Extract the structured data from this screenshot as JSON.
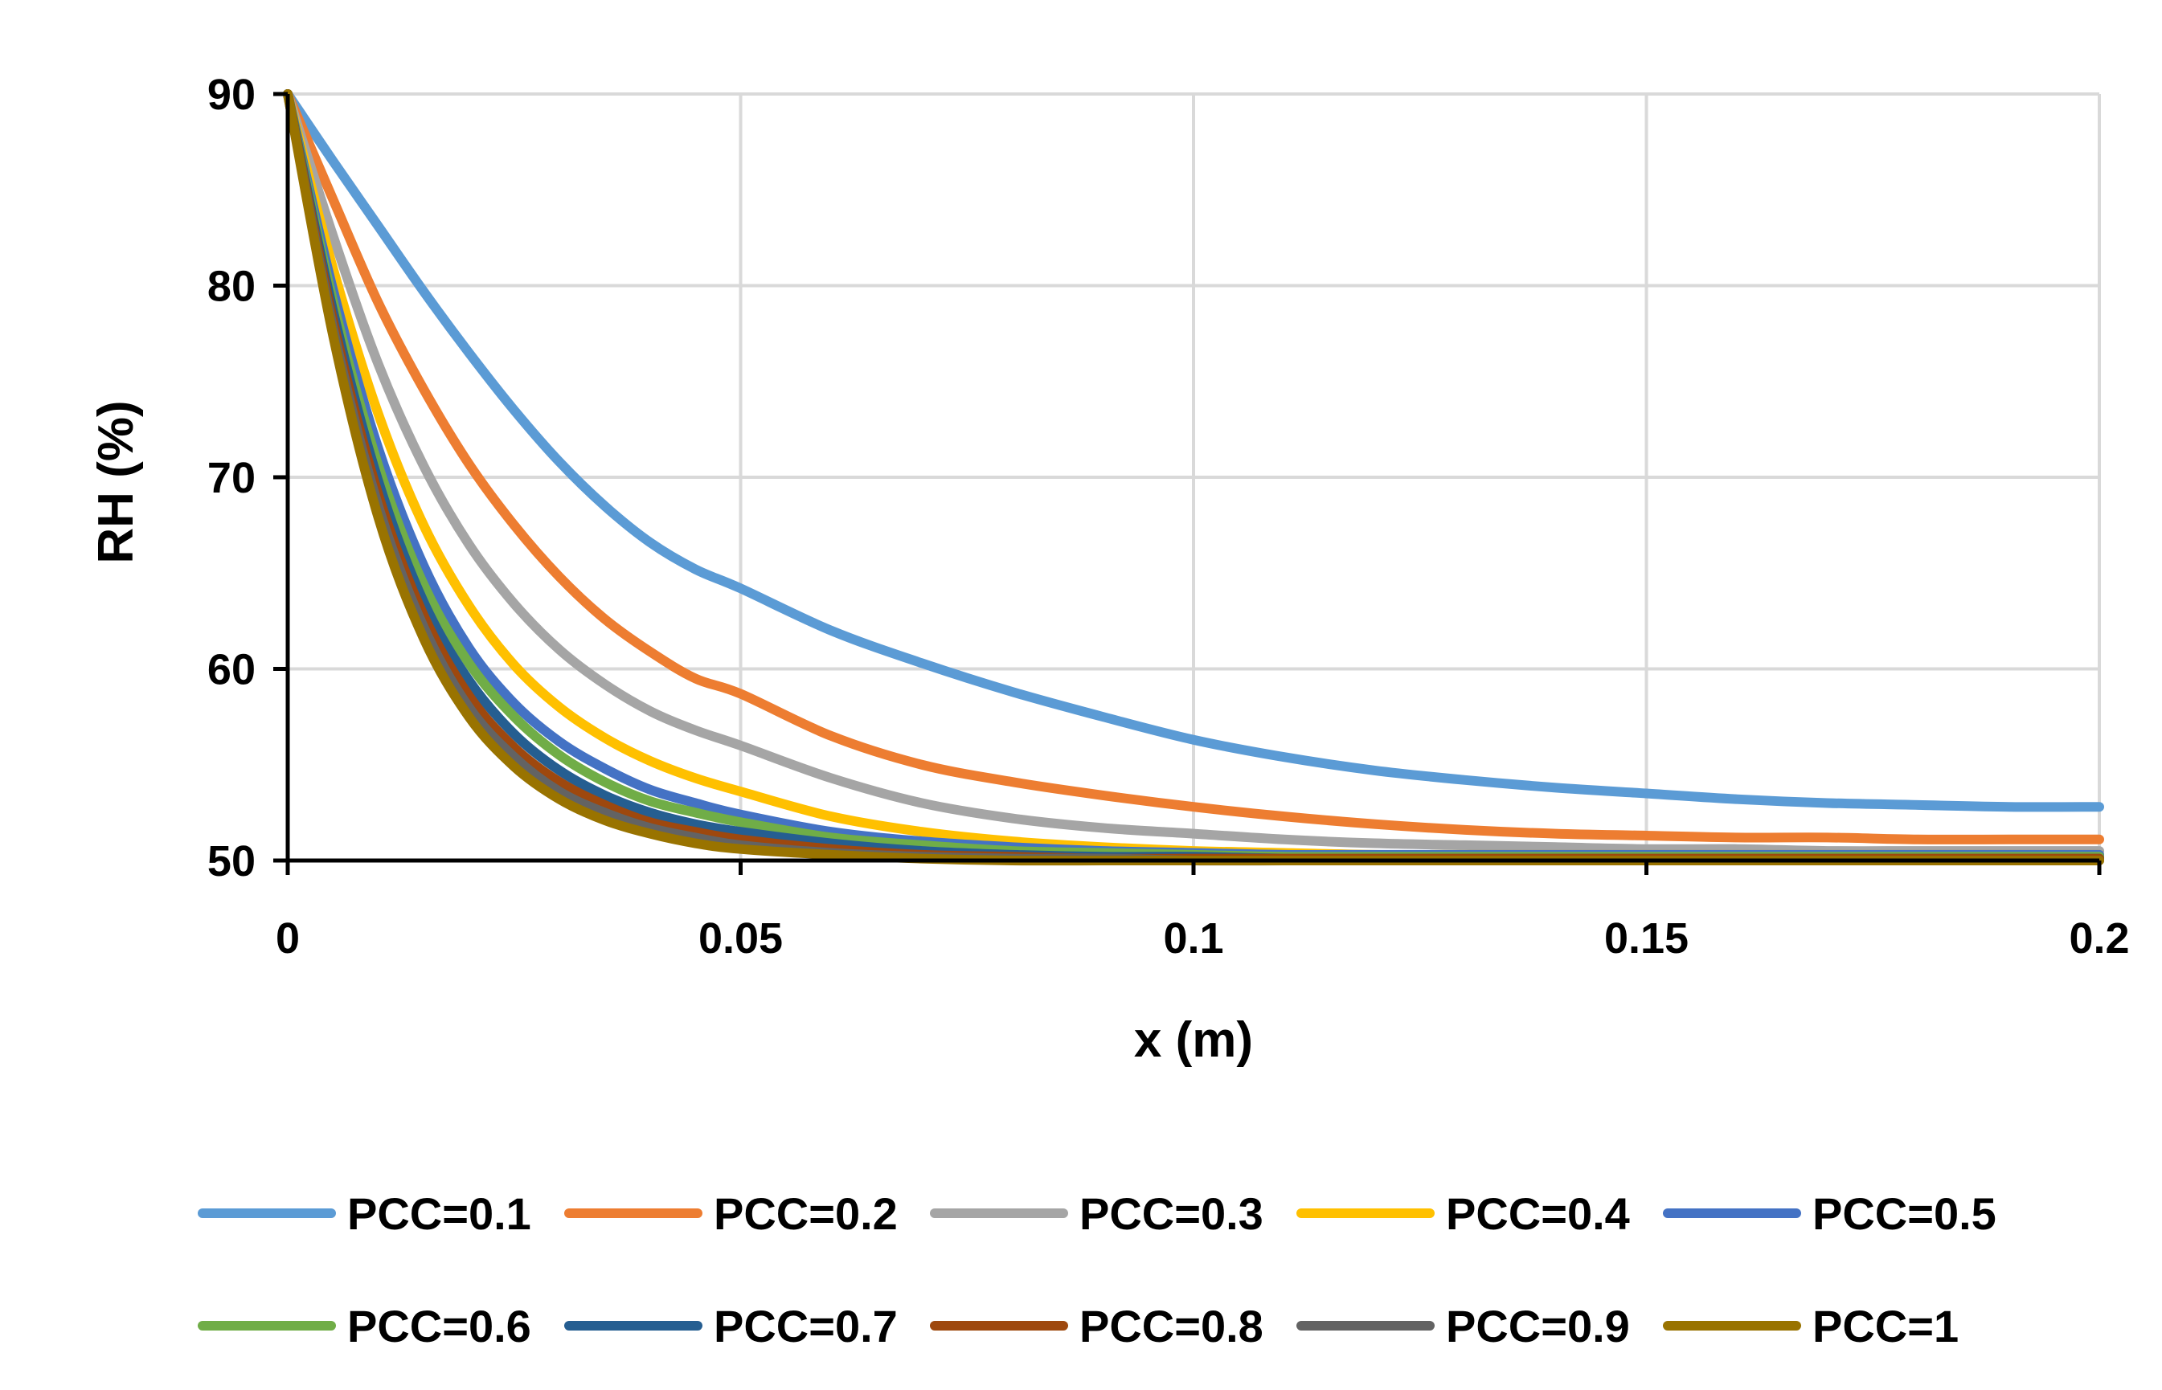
{
  "chart_data": {
    "type": "line",
    "xlabel": "x (m)",
    "ylabel": "RH (%)",
    "xlim": [
      0,
      0.2
    ],
    "ylim": [
      50,
      90
    ],
    "x_ticks": [
      "0",
      "0.05",
      "0.1",
      "0.15",
      "0.2"
    ],
    "y_ticks": [
      "50",
      "60",
      "70",
      "80",
      "90"
    ],
    "grid": true,
    "legend_position": "bottom",
    "x": [
      0,
      0.005,
      0.01,
      0.015,
      0.02,
      0.025,
      0.03,
      0.035,
      0.04,
      0.045,
      0.05,
      0.06,
      0.07,
      0.08,
      0.09,
      0.1,
      0.11,
      0.12,
      0.13,
      0.14,
      0.15,
      0.16,
      0.17,
      0.18,
      0.19,
      0.2
    ],
    "series": [
      {
        "name": "PCC=0.1",
        "color": "#5B9BD5",
        "values": [
          90,
          86.5,
          83.1,
          79.7,
          76.5,
          73.5,
          70.8,
          68.5,
          66.6,
          65.2,
          64.2,
          62.0,
          60.3,
          58.8,
          57.5,
          56.3,
          55.4,
          54.7,
          54.2,
          53.8,
          53.5,
          53.2,
          53.0,
          52.9,
          52.8,
          52.8
        ]
      },
      {
        "name": "PCC=0.2",
        "color": "#ED7D31",
        "values": [
          90,
          84.5,
          79.1,
          74.6,
          70.7,
          67.5,
          64.8,
          62.6,
          60.9,
          59.5,
          58.7,
          56.5,
          55.0,
          54.1,
          53.4,
          52.8,
          52.3,
          51.9,
          51.6,
          51.4,
          51.3,
          51.2,
          51.2,
          51.1,
          51.1,
          51.1
        ]
      },
      {
        "name": "PCC=0.3",
        "color": "#A5A5A5",
        "values": [
          90,
          82.6,
          75.9,
          70.6,
          66.5,
          63.4,
          61.0,
          59.2,
          57.8,
          56.8,
          56.0,
          54.3,
          53.0,
          52.2,
          51.7,
          51.4,
          51.1,
          50.9,
          50.8,
          50.7,
          50.6,
          50.6,
          50.5,
          50.5,
          50.5,
          50.5
        ]
      },
      {
        "name": "PCC=0.4",
        "color": "#FFC000",
        "values": [
          90,
          80.9,
          73.3,
          67.5,
          63.3,
          60.2,
          58.0,
          56.4,
          55.2,
          54.3,
          53.6,
          52.3,
          51.5,
          51.0,
          50.7,
          50.5,
          50.4,
          50.3,
          50.3,
          50.3,
          50.3,
          50.3,
          50.3,
          50.3,
          50.3,
          50.3
        ]
      },
      {
        "name": "PCC=0.5",
        "color": "#4472C4",
        "values": [
          90,
          79.8,
          71.5,
          65.4,
          61.1,
          58.2,
          56.2,
          54.8,
          53.7,
          53.0,
          52.4,
          51.5,
          51.0,
          50.7,
          50.5,
          50.4,
          50.3,
          50.3,
          50.3,
          50.3,
          50.3,
          50.3,
          50.3,
          50.3,
          50.3,
          50.3
        ]
      },
      {
        "name": "PCC=0.6",
        "color": "#70AD47",
        "values": [
          90,
          79.2,
          70.6,
          64.4,
          60.3,
          57.5,
          55.5,
          54.1,
          53.1,
          52.5,
          52.0,
          51.2,
          50.8,
          50.5,
          50.4,
          50.3,
          50.2,
          50.2,
          50.2,
          50.2,
          50.2,
          50.2,
          50.2,
          50.2,
          50.2,
          50.2
        ]
      },
      {
        "name": "PCC=0.7",
        "color": "#255E91",
        "values": [
          90,
          78.7,
          69.8,
          63.5,
          59.4,
          56.6,
          54.7,
          53.4,
          52.5,
          51.9,
          51.5,
          50.9,
          50.5,
          50.3,
          50.2,
          50.2,
          50.1,
          50.1,
          50.1,
          50.1,
          50.1,
          50.1,
          50.1,
          50.1,
          50.1,
          50.1
        ]
      },
      {
        "name": "PCC=0.8",
        "color": "#9E480E",
        "values": [
          90,
          78.2,
          69.1,
          62.8,
          58.6,
          55.9,
          54.1,
          52.9,
          52.0,
          51.5,
          51.1,
          50.6,
          50.3,
          50.2,
          50.1,
          50.1,
          50.1,
          50.1,
          50.1,
          50.1,
          50.1,
          50.1,
          50.1,
          50.1,
          50.1,
          50.1
        ]
      },
      {
        "name": "PCC=0.9",
        "color": "#636363",
        "values": [
          90,
          77.8,
          68.5,
          62.2,
          58.0,
          55.4,
          53.6,
          52.5,
          51.7,
          51.2,
          50.8,
          50.4,
          50.2,
          50.1,
          50.1,
          50.0,
          50.0,
          50.0,
          50.0,
          50.0,
          50.0,
          50.0,
          50.0,
          50.0,
          50.0,
          50.0
        ]
      },
      {
        "name": "PCC=1",
        "color": "#997300",
        "values": [
          90,
          77.4,
          67.9,
          61.6,
          57.5,
          54.9,
          53.2,
          52.1,
          51.4,
          50.9,
          50.6,
          50.3,
          50.1,
          50.0,
          50.0,
          50.0,
          50.0,
          50.0,
          50.0,
          50.0,
          50.0,
          50.0,
          50.0,
          50.0,
          50.0,
          50.0
        ]
      }
    ]
  }
}
